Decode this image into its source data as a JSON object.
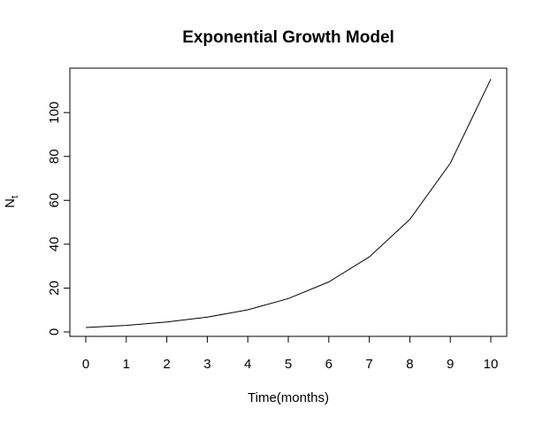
{
  "chart_data": {
    "type": "line",
    "title": "Exponential Growth Model",
    "xlabel": "Time(months)",
    "ylabel": {
      "main": "N",
      "sub": "t"
    },
    "xlim": [
      0,
      10
    ],
    "ylim": [
      0,
      115
    ],
    "x_ticks": [
      "0",
      "1",
      "2",
      "3",
      "4",
      "5",
      "6",
      "7",
      "8",
      "9",
      "10"
    ],
    "y_ticks": [
      "0",
      "20",
      "40",
      "60",
      "80",
      "100"
    ],
    "grid": false,
    "series": [
      {
        "x": [
          0,
          1,
          2,
          3,
          4,
          5,
          6,
          7,
          8,
          9,
          10
        ],
        "values": [
          2.0,
          3.0,
          4.5,
          6.75,
          10.1,
          15.2,
          22.8,
          34.2,
          51.3,
          76.9,
          115.3
        ]
      }
    ],
    "line_color": "#000000"
  }
}
